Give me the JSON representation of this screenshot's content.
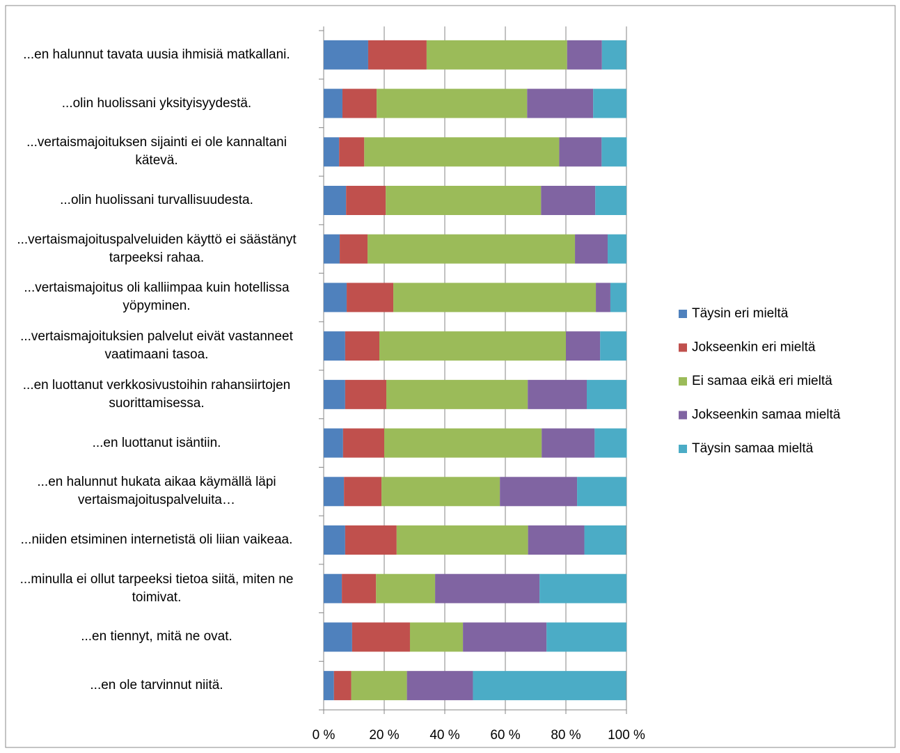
{
  "chart_data": {
    "type": "stacked-bar-horizontal",
    "categories": [
      "...en halunnut tavata uusia ihmisiä matkallani.",
      "...olin huolissani yksityisyydestä.",
      "...vertaismajoituksen sijainti ei ole kannaltani kätevä.",
      "...olin huolissani turvallisuudesta.",
      "...vertaismajoituspalveluiden käyttö ei säästänyt tarpeeksi rahaa.",
      "...vertaismajoitus oli kalliimpaa kuin hotellissa yöpyminen.",
      "...vertaismajoituksien palvelut eivät vastanneet vaatimaani tasoa.",
      "...en luottanut verkkosivustoihin rahansiirtojen suorittamisessa.",
      "...en luottanut isäntiin.",
      "...en halunnut hukata aikaa käymällä läpi vertaismajoituspalveluita…",
      "...niiden etsiminen internetistä oli liian vaikeaa.",
      "...minulla ei ollut tarpeeksi tietoa siitä, miten ne toimivat.",
      "...en tiennyt, mitä ne ovat.",
      "...en ole tarvinnut niitä."
    ],
    "series": [
      {
        "name": "Täysin eri mieltä",
        "color": "#4f81bd",
        "values": [
          14.7,
          6.2,
          5.1,
          7.4,
          5.3,
          7.6,
          7.1,
          7.1,
          6.4,
          6.7,
          7.1,
          6.0,
          9.4,
          3.4
        ]
      },
      {
        "name": "Jokseenkin eri mieltä",
        "color": "#c0504d",
        "values": [
          19.3,
          11.3,
          8.3,
          13.1,
          9.2,
          15.4,
          11.3,
          13.6,
          13.6,
          12.4,
          17.0,
          11.3,
          19.1,
          5.7
        ]
      },
      {
        "name": "Ei samaa eikä eri mieltä",
        "color": "#9bbb59",
        "values": [
          46.4,
          49.7,
          64.4,
          51.3,
          68.5,
          66.9,
          61.6,
          46.7,
          52.0,
          39.1,
          43.4,
          19.5,
          17.5,
          18.4
        ]
      },
      {
        "name": "Jokseenkin samaa mieltä",
        "color": "#8064a2",
        "values": [
          11.5,
          21.8,
          14.0,
          17.9,
          10.8,
          4.8,
          11.3,
          19.5,
          17.5,
          25.5,
          18.6,
          34.5,
          27.6,
          21.8
        ]
      },
      {
        "name": "Täysin samaa mieltä",
        "color": "#4bacc6",
        "values": [
          8.0,
          11.0,
          8.3,
          10.3,
          6.2,
          5.3,
          8.7,
          13.1,
          10.6,
          16.3,
          13.8,
          28.7,
          26.4,
          50.6
        ]
      }
    ],
    "xlim": [
      0,
      100
    ],
    "xticks": [
      {
        "value": 0,
        "label": "0 %"
      },
      {
        "value": 20,
        "label": "20 %"
      },
      {
        "value": 40,
        "label": "40 %"
      },
      {
        "value": 60,
        "label": "60 %"
      },
      {
        "value": 80,
        "label": "80 %"
      },
      {
        "value": 100,
        "label": "100 %"
      }
    ],
    "grid": true,
    "legend": "right"
  }
}
